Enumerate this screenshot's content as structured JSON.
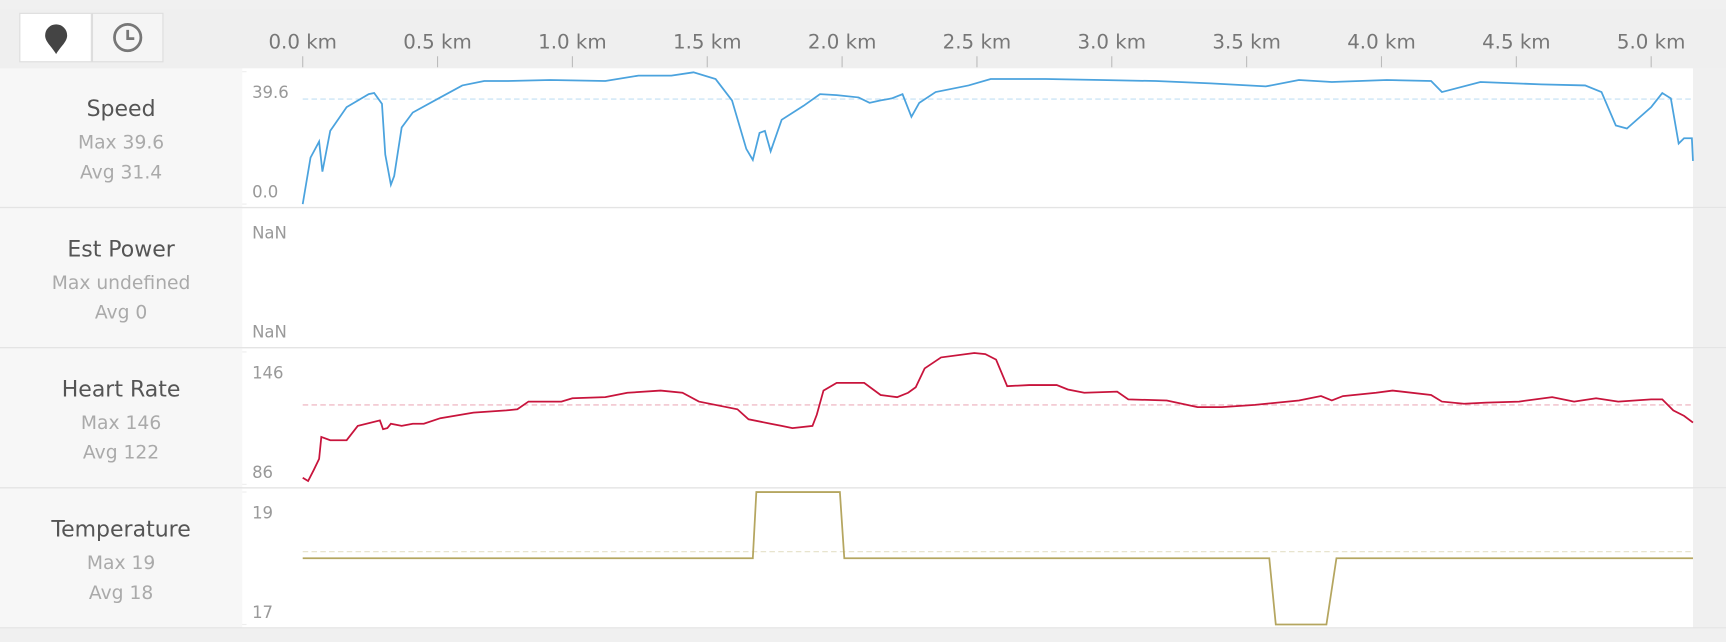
{
  "x_axis": {
    "xlim": [
      0,
      5.155
    ],
    "xticks": [
      {
        "value": 0,
        "label": "0.0 km"
      },
      {
        "value": 0.5,
        "label": "0.5 km"
      },
      {
        "value": 1,
        "label": "1.0 km"
      },
      {
        "value": 1.5,
        "label": "1.5 km"
      },
      {
        "value": 2,
        "label": "2.0 km"
      },
      {
        "value": 2.5,
        "label": "2.5 km"
      },
      {
        "value": 3,
        "label": "3.0 km"
      },
      {
        "value": 3.5,
        "label": "3.5 km"
      },
      {
        "value": 4,
        "label": "4.0 km"
      },
      {
        "value": 4.5,
        "label": "4.5 km"
      },
      {
        "value": 5,
        "label": "5.0 km"
      }
    ]
  },
  "chart_data": [
    {
      "type": "line",
      "title": "Speed",
      "stats": [
        "Max 39.6",
        "Avg 31.4"
      ],
      "color": "#4ba3de",
      "ylim": [
        0,
        39.6
      ],
      "yticks": [
        {
          "value": 0,
          "label": "0.0"
        },
        39.6
      ],
      "avg_line": 31.4,
      "x": [
        0,
        0.029,
        0.061,
        0.073,
        0.102,
        0.163,
        0.245,
        0.265,
        0.294,
        0.306,
        0.327,
        0.339,
        0.367,
        0.408,
        0.51,
        0.592,
        0.673,
        0.755,
        0.918,
        1.122,
        1.245,
        1.367,
        1.449,
        1.531,
        1.592,
        1.645,
        1.669,
        1.694,
        1.714,
        1.735,
        1.776,
        1.857,
        1.918,
        1.98,
        2.061,
        2.102,
        2.143,
        2.184,
        2.224,
        2.257,
        2.286,
        2.347,
        2.469,
        2.551,
        2.755,
        2.959,
        3.163,
        3.367,
        3.571,
        3.694,
        3.816,
        4.02,
        4.184,
        4.224,
        4.367,
        4.592,
        4.755,
        4.816,
        4.869,
        4.91,
        5.0,
        5.041,
        5.073,
        5.102,
        5.122,
        5.151,
        5.155
      ],
      "values": [
        0,
        13.9,
        18.7,
        9.7,
        21.9,
        29.0,
        32.9,
        33.2,
        30.0,
        14.8,
        5.8,
        8.4,
        22.9,
        27.4,
        31.9,
        35.5,
        36.8,
        36.8,
        37.1,
        36.8,
        38.4,
        38.4,
        39.4,
        37.4,
        31.0,
        16.5,
        13.2,
        21.3,
        21.9,
        15.8,
        25.2,
        29.4,
        32.9,
        32.6,
        31.9,
        30.3,
        31.0,
        31.6,
        32.9,
        26.1,
        30.3,
        33.5,
        35.5,
        37.4,
        37.4,
        37.1,
        36.8,
        36.1,
        35.2,
        37.1,
        36.5,
        37.1,
        36.8,
        33.5,
        36.5,
        35.8,
        35.5,
        33.5,
        23.5,
        22.6,
        29.0,
        33.2,
        31.6,
        18.1,
        19.7,
        19.7,
        12.9
      ]
    },
    {
      "type": "empty",
      "title": "Est Power",
      "stats": [
        "Max undefined",
        "Avg 0"
      ],
      "ytick_labels": [
        "NaN",
        "NaN"
      ]
    },
    {
      "type": "line",
      "title": "Heart Rate",
      "stats": [
        "Max 146",
        "Avg 122"
      ],
      "color": "#c8143c",
      "ylim": [
        86,
        146
      ],
      "yticks": [
        86,
        146
      ],
      "avg_line": 122,
      "x": [
        0,
        0.02,
        0.041,
        0.061,
        0.069,
        0.102,
        0.163,
        0.204,
        0.286,
        0.298,
        0.314,
        0.327,
        0.367,
        0.408,
        0.449,
        0.51,
        0.633,
        0.755,
        0.796,
        0.837,
        0.959,
        1.0,
        1.122,
        1.204,
        1.327,
        1.408,
        1.469,
        1.612,
        1.653,
        1.735,
        1.776,
        1.816,
        1.89,
        1.906,
        1.931,
        1.98,
        2.082,
        2.143,
        2.204,
        2.245,
        2.273,
        2.306,
        2.367,
        2.49,
        2.531,
        2.571,
        2.612,
        2.694,
        2.796,
        2.837,
        2.898,
        3.02,
        3.061,
        3.204,
        3.318,
        3.408,
        3.531,
        3.694,
        3.776,
        3.816,
        3.857,
        3.98,
        4.041,
        4.184,
        4.224,
        4.306,
        4.388,
        4.51,
        4.633,
        4.714,
        4.796,
        4.878,
        5.0,
        5.041,
        5.082,
        5.122,
        5.155
      ],
      "values": [
        89,
        87.5,
        92.5,
        97.5,
        107.5,
        106,
        106,
        112.5,
        115,
        111,
        111.5,
        113.5,
        112.5,
        113.5,
        113.5,
        116,
        118.5,
        119.5,
        120,
        123.5,
        123.5,
        125,
        125.5,
        127.5,
        128.5,
        127.5,
        123.5,
        120,
        115.5,
        113.5,
        112.5,
        111.5,
        112.5,
        117.5,
        128.5,
        132,
        132,
        126.5,
        125.5,
        127.5,
        130,
        138.5,
        143.5,
        145.5,
        145,
        142.5,
        130.5,
        131,
        131,
        129,
        127.5,
        128,
        124.5,
        124,
        121,
        121,
        122,
        124,
        126,
        124,
        126,
        127.5,
        128.5,
        126.5,
        123.5,
        122.5,
        123,
        123.5,
        125.5,
        123.5,
        125,
        123.5,
        124.5,
        124.5,
        119.5,
        117,
        114
      ]
    },
    {
      "type": "line",
      "title": "Temperature",
      "stats": [
        "Max 19",
        "Avg 18"
      ],
      "color": "#b5a660",
      "ylim": [
        17,
        19
      ],
      "yticks": [
        17,
        19
      ],
      "avg_line": 18.1,
      "x": [
        0,
        1.669,
        1.682,
        1.992,
        2.008,
        3.584,
        3.608,
        3.796,
        3.833,
        5.155
      ],
      "values": [
        18,
        18,
        19,
        19,
        18,
        18,
        17,
        17,
        18,
        18
      ]
    }
  ]
}
